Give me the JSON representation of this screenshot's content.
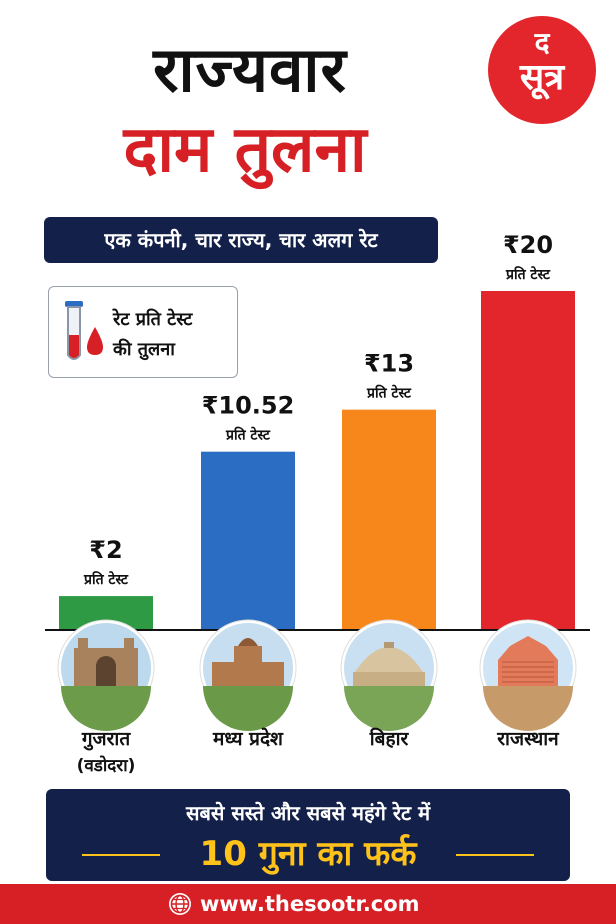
{
  "header": {
    "title_line1": "राज्यवार",
    "title_line2": "दाम तुलना",
    "subtitle": "एक कंपनी, चार राज्य, चार अलग रेट"
  },
  "logo": {
    "line1": "द",
    "line2": "सूत्र"
  },
  "rate_box": {
    "line1": "रेट प्रति टेस्ट",
    "line2": "की तुलना",
    "icon": "test-tube-blood-drop-icon"
  },
  "chart_data": {
    "type": "bar",
    "categories": [
      "गुजरात",
      "मध्य प्रदेश",
      "बिहार",
      "राजस्थान"
    ],
    "category_sublabels": [
      "(वडोदरा)",
      "",
      "",
      ""
    ],
    "values": [
      2,
      10.52,
      13,
      20
    ],
    "value_labels": [
      "₹2",
      "₹10.52",
      "₹13",
      "₹20"
    ],
    "unit_label": "प्रति टेस्ट",
    "colors": [
      "#2e9a44",
      "#2b6dc3",
      "#f7861b",
      "#e3262b"
    ],
    "ylim": [
      0,
      20
    ],
    "grid": false
  },
  "banner": {
    "line1": "सबसे सस्ते और सबसे महंगे रेट में",
    "line2": "10 गुना का फर्क"
  },
  "footer": {
    "url": "www.thesootr.com",
    "icon": "globe-icon"
  }
}
